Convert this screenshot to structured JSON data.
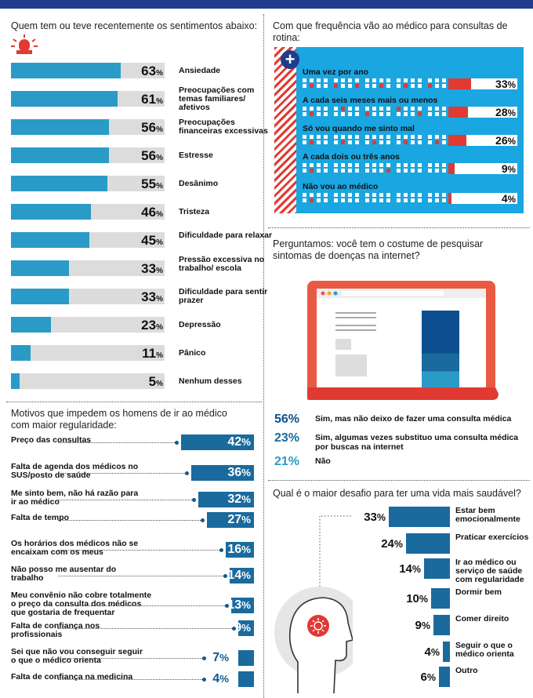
{
  "feelings": {
    "title": "Quem tem ou teve recentemente os sentimentos abaixo:",
    "items": [
      {
        "label": "Ansiedade",
        "value": 63
      },
      {
        "label": "Preocupações com temas familiares/ afetivos",
        "value": 61
      },
      {
        "label": "Preocupações financeiras excessivas",
        "value": 56
      },
      {
        "label": "Estresse",
        "value": 56
      },
      {
        "label": "Desânimo",
        "value": 55
      },
      {
        "label": "Tristeza",
        "value": 46
      },
      {
        "label": "Dificuldade para relaxar",
        "value": 45
      },
      {
        "label": "Pressão excessiva no trabalho/ escola",
        "value": 33
      },
      {
        "label": "Dificuldade para sentir prazer",
        "value": 33
      },
      {
        "label": "Depressão",
        "value": 23
      },
      {
        "label": "Pânico",
        "value": 11
      },
      {
        "label": "Nenhum desses",
        "value": 5
      }
    ]
  },
  "reasons": {
    "title": "Motivos que impedem os homens de ir ao médico com maior regularidade:",
    "items": [
      {
        "label": "Preço das consultas",
        "value": 42
      },
      {
        "label": "Falta de agenda dos médicos no SUS/posto de saúde",
        "value": 36
      },
      {
        "label": "Me sinto bem, não há razão para ir ao médico",
        "value": 32
      },
      {
        "label": "Falta de tempo",
        "value": 27
      },
      {
        "label": "Os horários dos médicos não se encaixam com os meus",
        "value": 16
      },
      {
        "label": "Não posso me ausentar do trabalho",
        "value": 14
      },
      {
        "label": "Meu convênio não cobre totalmente o preço da consulta dos médicos que gostaria de frequentar",
        "value": 13
      },
      {
        "label": "Falta de confiança nos profissionais",
        "value": 9
      },
      {
        "label": "Sei que não vou conseguir seguir o que o médico orienta",
        "value": 7
      },
      {
        "label": "Falta de confiança na medicina",
        "value": 4
      }
    ]
  },
  "frequency": {
    "title": "Com que frequência vão ao médico para consultas de rotina:",
    "items": [
      {
        "label": "Uma vez por ano",
        "value": 33
      },
      {
        "label": "A cada seis meses mais ou menos",
        "value": 28
      },
      {
        "label": "Só vou quando me sinto mal",
        "value": 26
      },
      {
        "label": "A cada dois ou três anos",
        "value": 9
      },
      {
        "label": "Não vou ao médico",
        "value": 4
      }
    ]
  },
  "search": {
    "title": "Perguntamos: você tem o costume de pesquisar sintomas de doenças na internet?",
    "items": [
      {
        "pct": "56%",
        "value": 56,
        "label": "Sim, mas não deixo de fazer uma consulta médica",
        "color": "#0d4f8f"
      },
      {
        "pct": "23%",
        "value": 23,
        "label": "Sim, algumas vezes substituo uma consulta médica por buscas na internet",
        "color": "#1a6a9e"
      },
      {
        "pct": "21%",
        "value": 21,
        "label": "Não",
        "color": "#2a9bc6"
      }
    ]
  },
  "challenge": {
    "title": "Qual é o maior desafio para ter uma vida mais saudável?",
    "items": [
      {
        "label": "Estar bem emocionalmente",
        "value": 33
      },
      {
        "label": "Praticar exercícios",
        "value": 24
      },
      {
        "label": "Ir ao médico ou serviço de saúde com regularidade",
        "value": 14
      },
      {
        "label": "Dormir bem",
        "value": 10
      },
      {
        "label": "Comer direito",
        "value": 9
      },
      {
        "label": "Seguir o que o médico orienta",
        "value": 4
      },
      {
        "label": "Outro",
        "value": 6
      }
    ]
  },
  "chart_data": [
    {
      "type": "bar",
      "title": "Quem tem ou teve recentemente os sentimentos abaixo:",
      "categories": [
        "Ansiedade",
        "Preocupações com temas familiares/ afetivos",
        "Preocupações financeiras excessivas",
        "Estresse",
        "Desânimo",
        "Tristeza",
        "Dificuldade para relaxar",
        "Pressão excessiva no trabalho/ escola",
        "Dificuldade para sentir prazer",
        "Depressão",
        "Pânico",
        "Nenhum desses"
      ],
      "values": [
        63,
        61,
        56,
        56,
        55,
        46,
        45,
        33,
        33,
        23,
        11,
        5
      ]
    },
    {
      "type": "bar",
      "title": "Com que frequência vão ao médico para consultas de rotina:",
      "categories": [
        "Uma vez por ano",
        "A cada seis meses mais ou menos",
        "Só vou quando me sinto mal",
        "A cada dois ou três anos",
        "Não vou ao médico"
      ],
      "values": [
        33,
        28,
        26,
        9,
        4
      ]
    },
    {
      "type": "bar",
      "title": "Motivos que impedem os homens de ir ao médico com maior regularidade:",
      "categories": [
        "Preço das consultas",
        "Falta de agenda dos médicos no SUS/posto de saúde",
        "Me sinto bem, não há razão para ir ao médico",
        "Falta de tempo",
        "Os horários dos médicos não se encaixam com os meus",
        "Não posso me ausentar do trabalho",
        "Meu convênio não cobre totalmente o preço da consulta dos médicos que gostaria de frequentar",
        "Falta de confiança nos profissionais",
        "Sei que não vou conseguir seguir o que o médico orienta",
        "Falta de confiança na medicina"
      ],
      "values": [
        42,
        36,
        32,
        27,
        16,
        14,
        13,
        9,
        7,
        4
      ]
    },
    {
      "type": "bar",
      "title": "Perguntamos: você tem o costume de pesquisar sintomas de doenças na internet?",
      "categories": [
        "Sim, mas não deixo de fazer uma consulta médica",
        "Sim, algumas vezes substituo uma consulta médica por buscas na internet",
        "Não"
      ],
      "values": [
        56,
        23,
        21
      ]
    },
    {
      "type": "bar",
      "title": "Qual é o maior desafio para ter uma vida mais saudável?",
      "categories": [
        "Estar bem emocionalmente",
        "Praticar exercícios",
        "Ir ao médico ou serviço de saúde com regularidade",
        "Dormir bem",
        "Comer direito",
        "Seguir o que o médico orienta",
        "Outro"
      ],
      "values": [
        33,
        24,
        14,
        10,
        9,
        4,
        6
      ]
    }
  ]
}
